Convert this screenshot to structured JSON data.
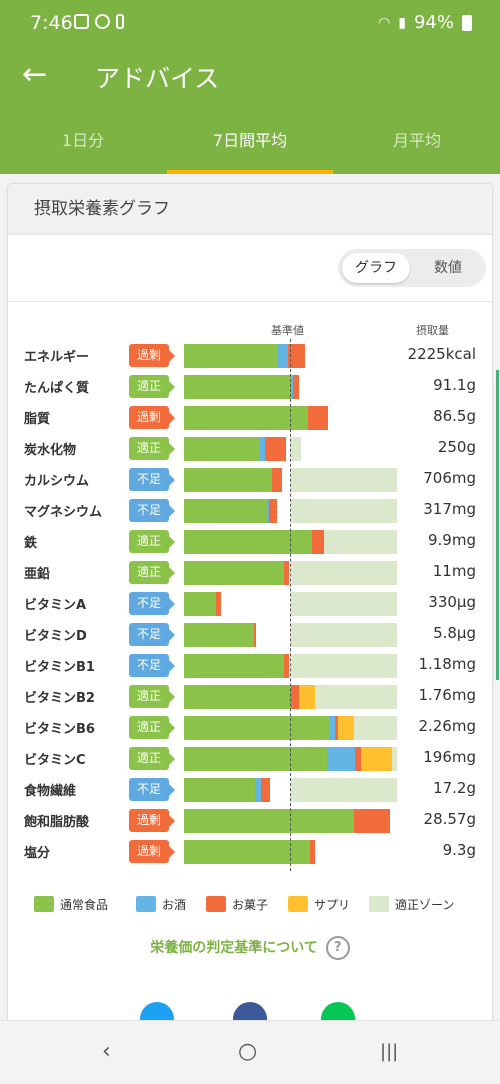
{
  "status": {
    "time": "7:46",
    "battery": "94%"
  },
  "appbar": {
    "back_icon": "arrow-left-icon",
    "title": "アドバイス"
  },
  "tabs": [
    {
      "label": "1日分",
      "active": false
    },
    {
      "label": "7日間平均",
      "active": true
    },
    {
      "label": "月平均",
      "active": false
    }
  ],
  "card": {
    "title": "摂取栄養素グラフ",
    "toggle": {
      "graph": "グラフ",
      "number": "数値",
      "selected": "グラフ"
    },
    "header": {
      "baseline": "基準値",
      "intake": "摂取量"
    }
  },
  "colors": {
    "food": "#8bc34a",
    "alcohol": "#64b5e6",
    "snack": "#f26b3a",
    "supplement": "#ffbf2f",
    "zone": "#dce8cc",
    "badge_over": "#f26b3a",
    "badge_ok": "#8bc34a",
    "badge_under": "#5fa8e0"
  },
  "nutrients": [
    {
      "name": "エネルギー",
      "status": "過剰",
      "value": "2225kcal"
    },
    {
      "name": "たんぱく質",
      "status": "適正",
      "value": "91.1g"
    },
    {
      "name": "脂質",
      "status": "過剰",
      "value": "86.5g"
    },
    {
      "name": "炭水化物",
      "status": "適正",
      "value": "250g"
    },
    {
      "name": "カルシウム",
      "status": "不足",
      "value": "706mg"
    },
    {
      "name": "マグネシウム",
      "status": "不足",
      "value": "317mg"
    },
    {
      "name": "鉄",
      "status": "適正",
      "value": "9.9mg"
    },
    {
      "name": "亜鉛",
      "status": "適正",
      "value": "11mg"
    },
    {
      "name": "ビタミンA",
      "status": "不足",
      "value": "330μg"
    },
    {
      "name": "ビタミンD",
      "status": "不足",
      "value": "5.8μg"
    },
    {
      "name": "ビタミンB1",
      "status": "不足",
      "value": "1.18mg"
    },
    {
      "name": "ビタミンB2",
      "status": "適正",
      "value": "1.76mg"
    },
    {
      "name": "ビタミンB6",
      "status": "適正",
      "value": "2.26mg"
    },
    {
      "name": "ビタミンC",
      "status": "適正",
      "value": "196mg"
    },
    {
      "name": "食物繊維",
      "status": "不足",
      "value": "17.2g"
    },
    {
      "name": "飽和脂肪酸",
      "status": "過剰",
      "value": "28.57g"
    },
    {
      "name": "塩分",
      "status": "過剰",
      "value": "9.3g"
    }
  ],
  "chart_data": {
    "type": "bar",
    "stacked": true,
    "unit": "percent of reference value (基準値 = 100)",
    "categories": [
      "エネルギー",
      "たんぱく質",
      "脂質",
      "炭水化物",
      "カルシウム",
      "マグネシウム",
      "鉄",
      "亜鉛",
      "ビタミンA",
      "ビタミンD",
      "ビタミンB1",
      "ビタミンB2",
      "ビタミンB6",
      "ビタミンC",
      "食物繊維",
      "飽和脂肪酸",
      "塩分"
    ],
    "series": [
      {
        "name": "通常食品",
        "values": [
          87,
          100,
          116,
          71,
          83,
          78,
          120,
          94,
          30,
          66,
          94,
          100,
          137,
          134,
          67,
          160,
          118
        ]
      },
      {
        "name": "お酒",
        "values": [
          11,
          2,
          0,
          5,
          0,
          2,
          0,
          0,
          0,
          0,
          0,
          0,
          5,
          27,
          5,
          0,
          0
        ]
      },
      {
        "name": "お菓子",
        "values": [
          16,
          6,
          19,
          20,
          9,
          7,
          11,
          5,
          5,
          2,
          5,
          8,
          3,
          5,
          9,
          33,
          5
        ]
      },
      {
        "name": "サプリ",
        "values": [
          0,
          0,
          0,
          0,
          0,
          0,
          0,
          0,
          0,
          0,
          0,
          15,
          15,
          29,
          0,
          0,
          0
        ]
      }
    ],
    "zone": [
      {
        "from": 100,
        "to": 110
      },
      {
        "from": 100,
        "to": 100
      },
      {
        "from": 100,
        "to": 100
      },
      {
        "from": 100,
        "to": 110
      },
      {
        "from": 100,
        "to": 200
      },
      {
        "from": 100,
        "to": 200
      },
      {
        "from": 100,
        "to": 200
      },
      {
        "from": 100,
        "to": 200
      },
      {
        "from": 100,
        "to": 200
      },
      {
        "from": 100,
        "to": 200
      },
      {
        "from": 100,
        "to": 200
      },
      {
        "from": 100,
        "to": 200
      },
      {
        "from": 100,
        "to": 200
      },
      {
        "from": 100,
        "to": 200
      },
      {
        "from": 100,
        "to": 200
      },
      {
        "from": 100,
        "to": 100
      },
      {
        "from": 100,
        "to": 100
      }
    ],
    "xlim": [
      0,
      200
    ]
  },
  "legend": [
    {
      "label": "通常食品",
      "color": "#8bc34a"
    },
    {
      "label": "お酒",
      "color": "#64b5e6"
    },
    {
      "label": "お菓子",
      "color": "#f26b3a"
    },
    {
      "label": "サプリ",
      "color": "#ffbf2f"
    },
    {
      "label": "適正ゾーン",
      "color": "#dce8cc"
    }
  ],
  "link": {
    "label": "栄養価の判定基準について",
    "help_icon": "help-circle-icon"
  },
  "social": [
    {
      "icon": "twitter-icon",
      "color": "#1da1f2"
    },
    {
      "icon": "facebook-icon",
      "color": "#1877f2"
    },
    {
      "icon": "line-icon",
      "color": "#06c755"
    }
  ],
  "navbar": {
    "back": "‹",
    "home": "○",
    "recents": "|||"
  }
}
